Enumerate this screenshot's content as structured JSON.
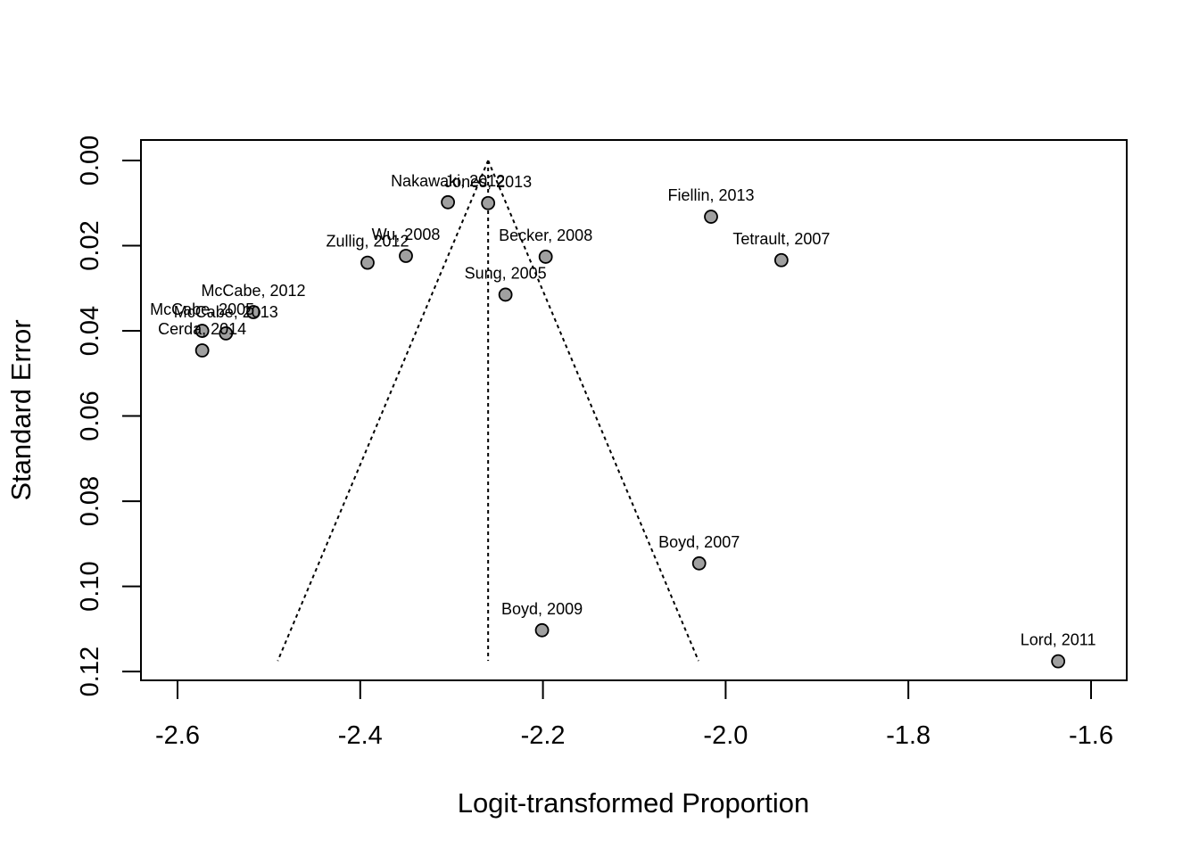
{
  "chart_data": {
    "type": "scatter",
    "title": "",
    "xlabel": "Logit-transformed Proportion",
    "ylabel": "Standard Error",
    "xlim": [
      -2.62,
      -1.56
    ],
    "ylim": [
      0.0,
      0.12
    ],
    "y_reversed": true,
    "x_ticks": [
      -2.6,
      -2.4,
      -2.2,
      -2.0,
      -1.8,
      -1.6
    ],
    "x_tick_labels": [
      "-2.6",
      "-2.4",
      "-2.2",
      "-2.0",
      "-1.8",
      "-1.6"
    ],
    "y_ticks": [
      0.0,
      0.02,
      0.04,
      0.06,
      0.08,
      0.1,
      0.12
    ],
    "y_tick_labels": [
      "0.00",
      "0.02",
      "0.04",
      "0.06",
      "0.08",
      "0.10",
      "0.12"
    ],
    "grid": false,
    "point_color": "#a0a0a0",
    "pooled_estimate": -2.26,
    "funnel_se_max": 0.1175,
    "points": [
      {
        "label": "Nakawaki, 2012",
        "x": -2.304,
        "y": 0.0098
      },
      {
        "label": "Jones, 2013",
        "x": -2.26,
        "y": 0.01
      },
      {
        "label": "Fiellin, 2013",
        "x": -2.016,
        "y": 0.0132
      },
      {
        "label": "Wu, 2008",
        "x": -2.35,
        "y": 0.0224
      },
      {
        "label": "Zullig, 2012",
        "x": -2.392,
        "y": 0.024
      },
      {
        "label": "Becker, 2008",
        "x": -2.197,
        "y": 0.0226
      },
      {
        "label": "Tetrault, 2007",
        "x": -1.939,
        "y": 0.0234
      },
      {
        "label": "Sung, 2005",
        "x": -2.241,
        "y": 0.0315
      },
      {
        "label": "McCabe, 2012",
        "x": -2.517,
        "y": 0.0356
      },
      {
        "label": "McCabe, 2005",
        "x": -2.573,
        "y": 0.04
      },
      {
        "label": "McCabe, 2013",
        "x": -2.547,
        "y": 0.0406
      },
      {
        "label": "Cerda, 2014",
        "x": -2.573,
        "y": 0.0446
      },
      {
        "label": "Boyd, 2007",
        "x": -2.029,
        "y": 0.0946
      },
      {
        "label": "Boyd, 2009",
        "x": -2.201,
        "y": 0.1103
      },
      {
        "label": "Lord, 2011",
        "x": -1.636,
        "y": 0.1176
      }
    ]
  }
}
